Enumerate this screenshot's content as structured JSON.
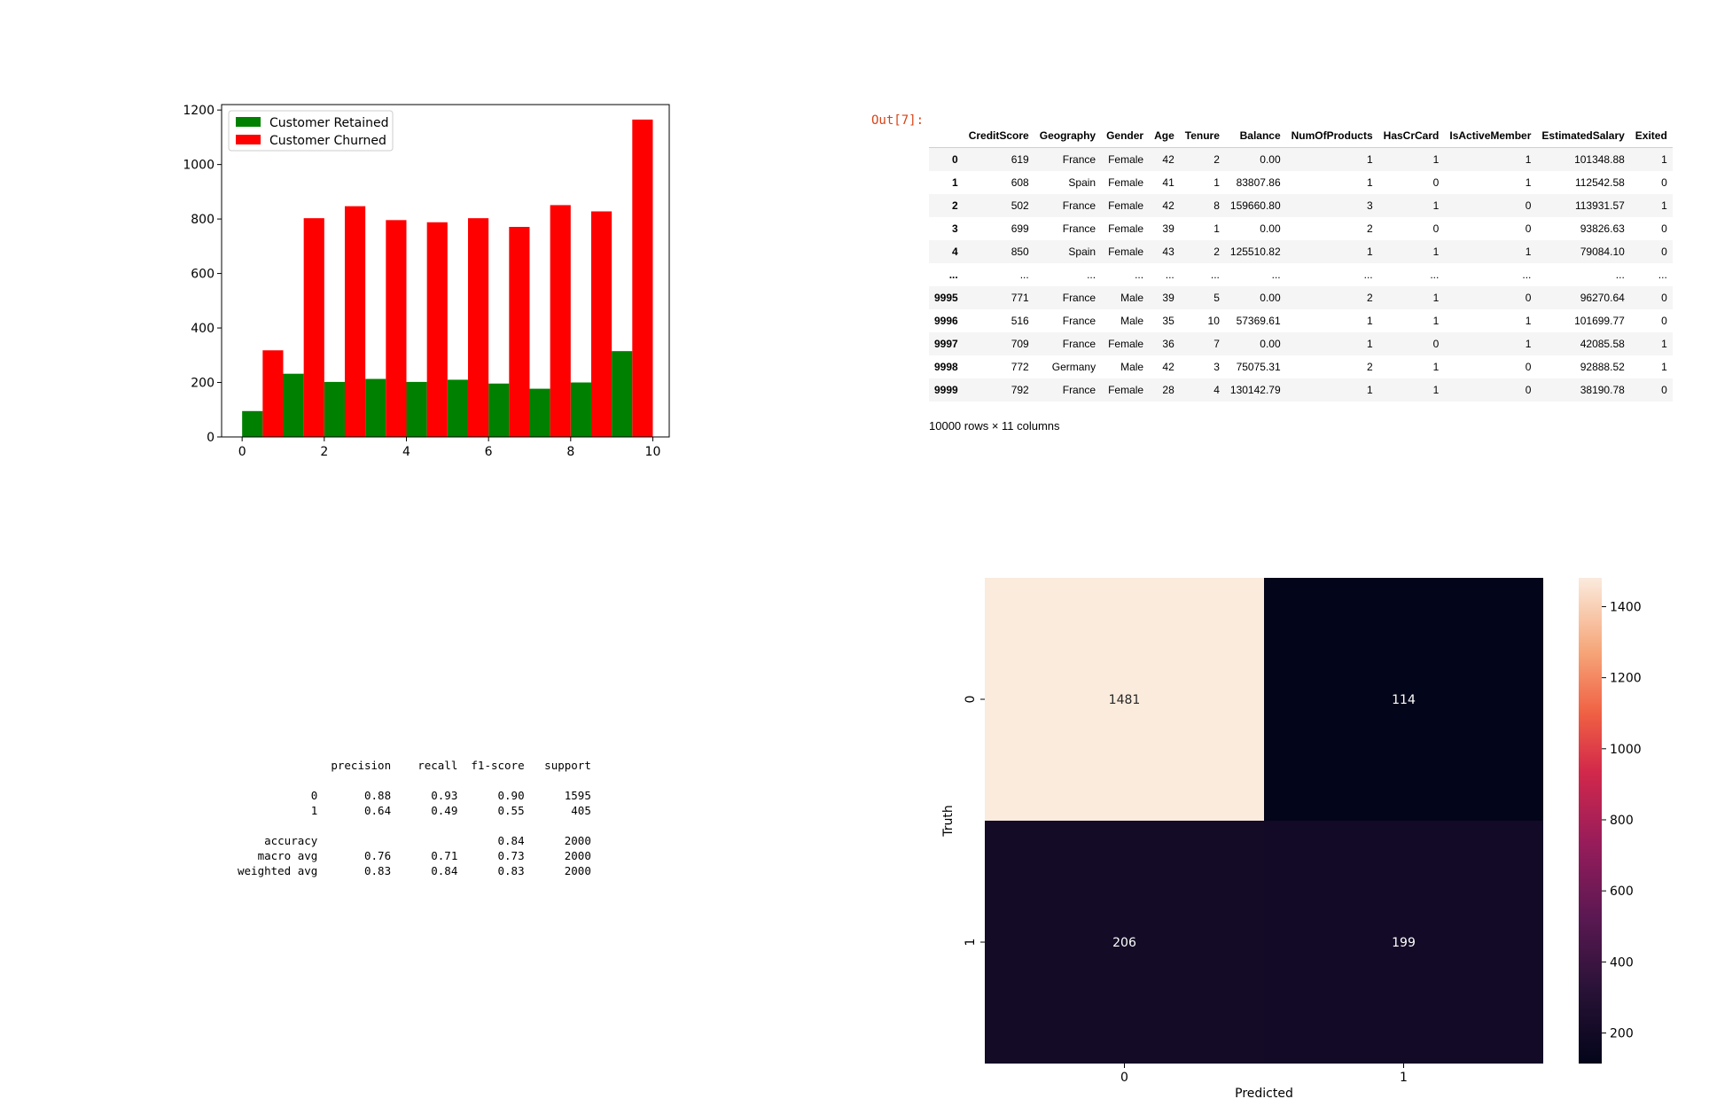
{
  "out_prompt": "Out[7]:",
  "chart_data": {
    "type": "bar",
    "title": "",
    "xlabel": "",
    "ylabel": "",
    "xlim": [
      -0.5,
      10.4
    ],
    "ylim": [
      0,
      1220
    ],
    "xticks": [
      "0",
      "2",
      "4",
      "6",
      "8",
      "10"
    ],
    "xtick_values": [
      0,
      2,
      4,
      6,
      8,
      10
    ],
    "yticks": [
      "0",
      "200",
      "400",
      "600",
      "800",
      "1000",
      "1200"
    ],
    "ytick_values": [
      0,
      200,
      400,
      600,
      800,
      1000,
      1200
    ],
    "legend_placement": "top-left",
    "bin_starts": [
      0,
      1,
      2,
      3,
      4,
      5,
      6,
      7,
      8,
      9
    ],
    "bin_width": 1,
    "series": [
      {
        "name": "Customer Retained",
        "color": "#008000",
        "values": [
          95,
          232,
          202,
          213,
          202,
          210,
          196,
          177,
          200,
          315
        ]
      },
      {
        "name": "Customer Churned",
        "color": "#ff0000",
        "values": [
          318,
          803,
          847,
          796,
          788,
          803,
          771,
          851,
          828,
          1165
        ]
      }
    ]
  },
  "dataframe": {
    "columns": [
      "",
      "CreditScore",
      "Geography",
      "Gender",
      "Age",
      "Tenure",
      "Balance",
      "NumOfProducts",
      "HasCrCard",
      "IsActiveMember",
      "EstimatedSalary",
      "Exited"
    ],
    "rows": [
      [
        "0",
        "619",
        "France",
        "Female",
        "42",
        "2",
        "0.00",
        "1",
        "1",
        "1",
        "101348.88",
        "1"
      ],
      [
        "1",
        "608",
        "Spain",
        "Female",
        "41",
        "1",
        "83807.86",
        "1",
        "0",
        "1",
        "112542.58",
        "0"
      ],
      [
        "2",
        "502",
        "France",
        "Female",
        "42",
        "8",
        "159660.80",
        "3",
        "1",
        "0",
        "113931.57",
        "1"
      ],
      [
        "3",
        "699",
        "France",
        "Female",
        "39",
        "1",
        "0.00",
        "2",
        "0",
        "0",
        "93826.63",
        "0"
      ],
      [
        "4",
        "850",
        "Spain",
        "Female",
        "43",
        "2",
        "125510.82",
        "1",
        "1",
        "1",
        "79084.10",
        "0"
      ],
      [
        "...",
        "...",
        "...",
        "...",
        "...",
        "...",
        "...",
        "...",
        "...",
        "...",
        "...",
        "..."
      ],
      [
        "9995",
        "771",
        "France",
        "Male",
        "39",
        "5",
        "0.00",
        "2",
        "1",
        "0",
        "96270.64",
        "0"
      ],
      [
        "9996",
        "516",
        "France",
        "Male",
        "35",
        "10",
        "57369.61",
        "1",
        "1",
        "1",
        "101699.77",
        "0"
      ],
      [
        "9997",
        "709",
        "France",
        "Female",
        "36",
        "7",
        "0.00",
        "1",
        "0",
        "1",
        "42085.58",
        "1"
      ],
      [
        "9998",
        "772",
        "Germany",
        "Male",
        "42",
        "3",
        "75075.31",
        "2",
        "1",
        "0",
        "92888.52",
        "1"
      ],
      [
        "9999",
        "792",
        "France",
        "Female",
        "28",
        "4",
        "130142.79",
        "1",
        "1",
        "0",
        "38190.78",
        "0"
      ]
    ],
    "shape_text": "10000 rows × 11 columns"
  },
  "classification_report": "              precision    recall  f1-score   support\n\n           0       0.88      0.93      0.90      1595\n           1       0.64      0.49      0.55       405\n\n    accuracy                           0.84      2000\n   macro avg       0.76      0.71      0.73      2000\nweighted avg       0.83      0.84      0.83      2000",
  "confusion_matrix": {
    "type": "heatmap",
    "xlabel": "Predicted",
    "ylabel": "Truth",
    "x_categories": [
      "0",
      "1"
    ],
    "y_categories": [
      "0",
      "1"
    ],
    "values": [
      [
        1481,
        114
      ],
      [
        206,
        199
      ]
    ],
    "annotations": [
      [
        "1481",
        "114"
      ],
      [
        "206",
        "199"
      ]
    ],
    "colorbar_ticks": [
      "200",
      "400",
      "600",
      "800",
      "1000",
      "1200",
      "1400"
    ],
    "colorbar_tick_values": [
      200,
      400,
      600,
      800,
      1000,
      1200,
      1400
    ],
    "colorbar_range": [
      114,
      1481
    ],
    "colormap": "rocket"
  }
}
